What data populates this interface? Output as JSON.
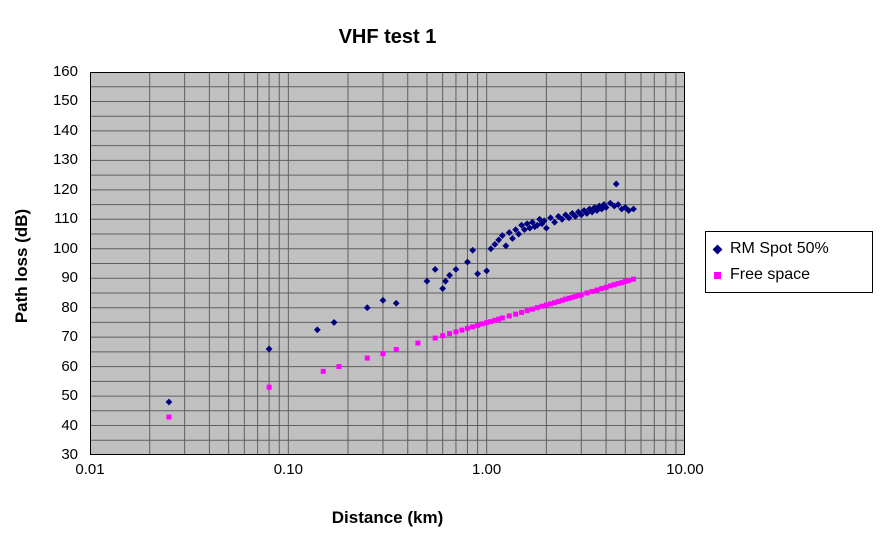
{
  "chart_data": {
    "type": "scatter",
    "title": "VHF test 1",
    "xlabel": "Distance (km)",
    "ylabel": "Path loss (dB)",
    "x_scale": "log",
    "xlim": [
      0.01,
      10
    ],
    "ylim": [
      30,
      160
    ],
    "xticks": [
      {
        "label": "0.01",
        "value": 0.01
      },
      {
        "label": "0.10",
        "value": 0.1
      },
      {
        "label": "1.00",
        "value": 1
      },
      {
        "label": "10.00",
        "value": 10
      }
    ],
    "yticks": [
      160,
      150,
      140,
      130,
      120,
      110,
      100,
      90,
      80,
      70,
      60,
      50,
      40,
      30
    ],
    "grid": {
      "on": true,
      "horizontal_step_db": 5,
      "vertical": "log-minor"
    },
    "legend_position": "right",
    "colors": {
      "plot_bg": "#c0c0c0",
      "grid": "#5f5f5f",
      "border": "#000000"
    },
    "series": [
      {
        "name": "RM Spot 50%",
        "marker": "diamond",
        "color": "#000080",
        "points": [
          [
            0.025,
            48
          ],
          [
            0.08,
            66
          ],
          [
            0.14,
            72.5
          ],
          [
            0.17,
            75
          ],
          [
            0.25,
            80
          ],
          [
            0.3,
            82.5
          ],
          [
            0.35,
            81.5
          ],
          [
            0.5,
            89
          ],
          [
            0.55,
            93
          ],
          [
            0.6,
            86.5
          ],
          [
            0.62,
            89
          ],
          [
            0.65,
            91
          ],
          [
            0.7,
            93
          ],
          [
            0.8,
            95.5
          ],
          [
            0.85,
            99.5
          ],
          [
            0.9,
            91.5
          ],
          [
            1,
            92.5
          ],
          [
            1.05,
            100
          ],
          [
            1.1,
            101.5
          ],
          [
            1.15,
            103
          ],
          [
            1.2,
            104.5
          ],
          [
            1.25,
            101
          ],
          [
            1.3,
            105.5
          ],
          [
            1.35,
            103.5
          ],
          [
            1.4,
            106.5
          ],
          [
            1.45,
            105
          ],
          [
            1.5,
            108
          ],
          [
            1.55,
            106.5
          ],
          [
            1.6,
            108.5
          ],
          [
            1.65,
            107
          ],
          [
            1.7,
            109
          ],
          [
            1.75,
            107.5
          ],
          [
            1.8,
            108
          ],
          [
            1.85,
            110
          ],
          [
            1.9,
            108.5
          ],
          [
            1.95,
            109.5
          ],
          [
            2,
            107
          ],
          [
            2.1,
            110.5
          ],
          [
            2.2,
            109
          ],
          [
            2.3,
            111
          ],
          [
            2.4,
            110
          ],
          [
            2.5,
            111.5
          ],
          [
            2.6,
            110.5
          ],
          [
            2.7,
            112
          ],
          [
            2.8,
            111
          ],
          [
            2.9,
            112.5
          ],
          [
            3,
            111.5
          ],
          [
            3.1,
            113
          ],
          [
            3.2,
            112
          ],
          [
            3.3,
            113.5
          ],
          [
            3.4,
            112.5
          ],
          [
            3.5,
            114
          ],
          [
            3.6,
            113
          ],
          [
            3.7,
            114.5
          ],
          [
            3.8,
            113.5
          ],
          [
            3.9,
            115
          ],
          [
            4,
            114
          ],
          [
            4.2,
            115.5
          ],
          [
            4.4,
            114.5
          ],
          [
            4.5,
            122
          ],
          [
            4.6,
            115
          ],
          [
            4.8,
            113.5
          ],
          [
            5,
            114
          ],
          [
            5.2,
            113
          ],
          [
            5.5,
            113.5
          ]
        ]
      },
      {
        "name": "Free space",
        "marker": "square",
        "color": "#ff00ff",
        "points": [
          [
            0.025,
            42.9
          ],
          [
            0.08,
            53
          ],
          [
            0.15,
            58.4
          ],
          [
            0.18,
            60
          ],
          [
            0.25,
            62.9
          ],
          [
            0.3,
            64.4
          ],
          [
            0.35,
            65.8
          ],
          [
            0.45,
            68
          ],
          [
            0.55,
            69.7
          ],
          [
            0.6,
            70.5
          ],
          [
            0.65,
            71.2
          ],
          [
            0.7,
            71.8
          ],
          [
            0.75,
            72.4
          ],
          [
            0.8,
            73
          ],
          [
            0.85,
            73.5
          ],
          [
            0.9,
            74
          ],
          [
            0.95,
            74.5
          ],
          [
            1,
            74.9
          ],
          [
            1.05,
            75.3
          ],
          [
            1.1,
            75.7
          ],
          [
            1.15,
            76.1
          ],
          [
            1.2,
            76.5
          ],
          [
            1.3,
            77.2
          ],
          [
            1.4,
            77.8
          ],
          [
            1.5,
            78.4
          ],
          [
            1.6,
            79
          ],
          [
            1.7,
            79.5
          ],
          [
            1.8,
            80
          ],
          [
            1.9,
            80.5
          ],
          [
            2,
            80.9
          ],
          [
            2.1,
            81.3
          ],
          [
            2.2,
            81.7
          ],
          [
            2.3,
            82.1
          ],
          [
            2.4,
            82.5
          ],
          [
            2.5,
            82.9
          ],
          [
            2.6,
            83.2
          ],
          [
            2.7,
            83.5
          ],
          [
            2.8,
            83.8
          ],
          [
            2.9,
            84.1
          ],
          [
            3,
            84.4
          ],
          [
            3.2,
            85
          ],
          [
            3.4,
            85.5
          ],
          [
            3.6,
            86
          ],
          [
            3.8,
            86.5
          ],
          [
            4,
            86.9
          ],
          [
            4.2,
            87.4
          ],
          [
            4.4,
            87.8
          ],
          [
            4.6,
            88.2
          ],
          [
            4.8,
            88.5
          ],
          [
            5,
            88.9
          ],
          [
            5.2,
            89.2
          ],
          [
            5.5,
            89.7
          ]
        ]
      }
    ]
  }
}
